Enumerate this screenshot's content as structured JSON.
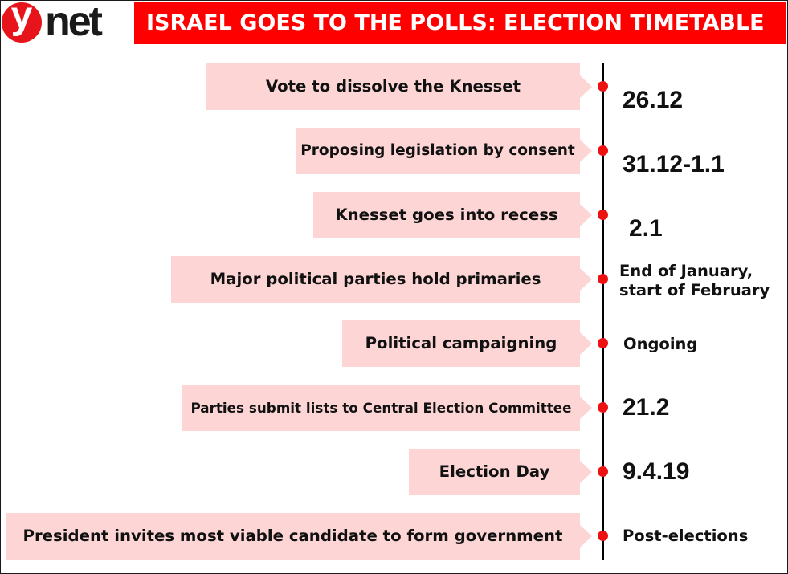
{
  "brand": {
    "logo_letter": "y",
    "logo_text": "net",
    "logo_color": "#e8141b"
  },
  "header": {
    "title": "ISRAEL GOES TO THE POLLS: ELECTION TIMETABLE",
    "background_color": "#ff0000",
    "text_color": "#ffffff"
  },
  "timeline": {
    "box_color": "#fdd5d5",
    "dot_color": "#ee1111",
    "line_color": "#000000",
    "events": [
      {
        "label": "Vote to dissolve the Knesset",
        "date": [
          "26.12"
        ]
      },
      {
        "label": "Proposing legislation by consent",
        "date": [
          "31.12-1.1"
        ]
      },
      {
        "label": "Knesset goes into recess",
        "date": [
          "2.1"
        ]
      },
      {
        "label": "Major political parties hold primaries",
        "date": [
          "End of January,",
          "start of February"
        ]
      },
      {
        "label": "Political campaigning",
        "date": [
          "Ongoing"
        ]
      },
      {
        "label": "Parties submit lists to Central Election Committee",
        "date": [
          "21.2"
        ]
      },
      {
        "label": "Election Day",
        "date": [
          "9.4.19"
        ]
      },
      {
        "label": "President invites most viable candidate to form government",
        "date": [
          "Post-elections"
        ]
      }
    ]
  }
}
